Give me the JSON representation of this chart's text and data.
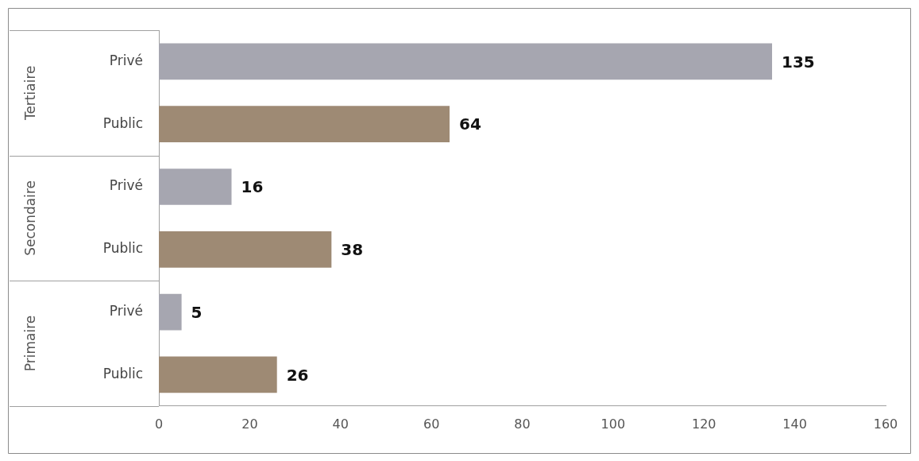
{
  "chart_data": {
    "type": "bar",
    "orientation": "horizontal",
    "categories": [
      "Privé",
      "Public",
      "Privé",
      "Public",
      "Privé",
      "Public"
    ],
    "values": [
      135,
      64,
      16,
      38,
      5,
      26
    ],
    "colors": [
      "#a6a6b0",
      "#9e8a74",
      "#a6a6b0",
      "#9e8a74",
      "#a6a6b0",
      "#9e8a74"
    ],
    "annotations": [
      "Tertiaire",
      "Secondaire",
      "Primaire"
    ],
    "xlim": [
      0,
      160
    ],
    "xticks": [
      0,
      20,
      40,
      60,
      80,
      100,
      120,
      140,
      160
    ],
    "data_labels": true,
    "grid": false,
    "legend": false
  }
}
